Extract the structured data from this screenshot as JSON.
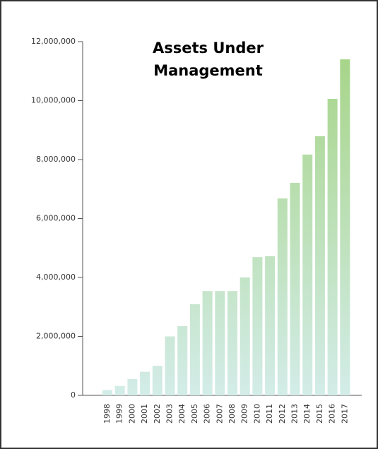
{
  "chart_data": {
    "type": "bar",
    "title": "Assets Under Management",
    "categories": [
      "1998",
      "1999",
      "2000",
      "2001",
      "2002",
      "2003",
      "2004",
      "2005",
      "2006",
      "2007",
      "2008",
      "2009",
      "2010",
      "2011",
      "2012",
      "2013",
      "2014",
      "2015",
      "2016",
      "2017"
    ],
    "values": [
      180000,
      320000,
      550000,
      800000,
      1000000,
      2000000,
      2350000,
      3090000,
      3540000,
      3540000,
      3540000,
      4000000,
      4690000,
      4720000,
      6680000,
      7210000,
      8170000,
      8790000,
      10060000,
      11400000
    ],
    "colors": [
      "#a5d485",
      "#d3ece8"
    ],
    "ylim": [
      0,
      12000000
    ],
    "yticks": [
      0,
      {
        "value": 2000000,
        "label": "2,000,000"
      },
      {
        "value": 4000000,
        "label": "4,000,000"
      },
      {
        "value": 6000000,
        "label": "6,000,000"
      },
      {
        "value": 8000000,
        "label": "8,000,000"
      },
      {
        "value": 10000000,
        "label": "10,000,000"
      },
      {
        "value": 12000000,
        "label": "12,000,000"
      }
    ]
  }
}
